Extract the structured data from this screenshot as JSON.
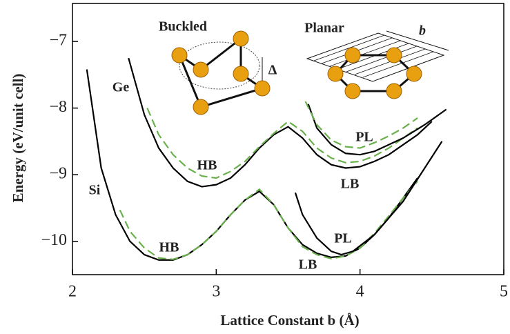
{
  "chart_data": {
    "type": "line",
    "xlabel": "Lattice Constant b (Å)",
    "ylabel": "Energy (eV/unit cell)",
    "xlim": [
      2,
      5
    ],
    "ylim": [
      -10.5,
      -6.43
    ],
    "xticks": [
      2,
      3,
      4,
      5
    ],
    "yticks": [
      {
        "value": -7,
        "label": "−7"
      },
      {
        "value": -8,
        "label": "−8"
      },
      {
        "value": -9,
        "label": "−9"
      },
      {
        "value": -10,
        "label": "−10"
      }
    ],
    "series": [
      {
        "color": "#000000",
        "dash": false,
        "x": [
          2.1,
          2.2,
          2.3,
          2.4,
          2.5,
          2.6,
          2.7,
          2.8,
          2.9,
          3.0,
          3.1,
          3.2,
          3.3,
          3.4,
          3.5,
          3.6,
          3.7,
          3.8,
          3.9,
          4.0,
          4.1,
          4.2,
          4.3,
          4.4
        ],
        "values": [
          -7.42,
          -8.9,
          -9.6,
          -10.0,
          -10.2,
          -10.28,
          -10.28,
          -10.2,
          -10.05,
          -9.85,
          -9.6,
          -9.38,
          -9.25,
          -9.45,
          -9.8,
          -10.05,
          -10.18,
          -10.24,
          -10.22,
          -10.1,
          -9.9,
          -9.65,
          -9.35,
          -9.05
        ]
      },
      {
        "color": "#6ab04c",
        "dash": true,
        "x": [
          2.33,
          2.4,
          2.5,
          2.6,
          2.7,
          2.8,
          2.9,
          3.0,
          3.1,
          3.2,
          3.3,
          3.4,
          3.5,
          3.6,
          3.7,
          3.8,
          3.9,
          4.0,
          4.1,
          4.2,
          4.3,
          4.4
        ],
        "values": [
          -9.53,
          -9.85,
          -10.1,
          -10.25,
          -10.27,
          -10.2,
          -10.05,
          -9.85,
          -9.6,
          -9.38,
          -9.22,
          -9.45,
          -9.8,
          -10.08,
          -10.2,
          -10.26,
          -10.22,
          -10.1,
          -9.88,
          -9.62,
          -9.35,
          -9.1
        ]
      },
      {
        "color": "#000000",
        "dash": false,
        "x": [
          3.55,
          3.6,
          3.7,
          3.8,
          3.87,
          3.95,
          4.1,
          4.3,
          4.45,
          4.57
        ],
        "values": [
          -9.27,
          -9.6,
          -9.95,
          -10.15,
          -10.2,
          -10.15,
          -9.9,
          -9.4,
          -8.9,
          -8.5
        ]
      },
      {
        "color": "#000000",
        "dash": false,
        "x": [
          2.39,
          2.5,
          2.6,
          2.7,
          2.8,
          2.9,
          3.0,
          3.1,
          3.2,
          3.3,
          3.4,
          3.5,
          3.6,
          3.7,
          3.8,
          3.9,
          4.0,
          4.1,
          4.2,
          4.3,
          4.4,
          4.5
        ],
        "values": [
          -7.25,
          -8.1,
          -8.6,
          -8.9,
          -9.1,
          -9.18,
          -9.15,
          -9.05,
          -8.85,
          -8.6,
          -8.4,
          -8.28,
          -8.45,
          -8.7,
          -8.85,
          -8.9,
          -8.88,
          -8.8,
          -8.7,
          -8.55,
          -8.4,
          -8.2
        ]
      },
      {
        "color": "#6ab04c",
        "dash": true,
        "x": [
          2.52,
          2.6,
          2.7,
          2.8,
          2.9,
          3.0,
          3.1,
          3.2,
          3.3,
          3.4,
          3.5,
          3.6,
          3.7,
          3.8,
          3.9,
          4.0,
          4.1,
          4.2,
          4.3,
          4.4
        ],
        "values": [
          -8.0,
          -8.4,
          -8.7,
          -8.9,
          -9.02,
          -9.05,
          -8.95,
          -8.8,
          -8.58,
          -8.38,
          -8.2,
          -8.35,
          -8.6,
          -8.75,
          -8.82,
          -8.8,
          -8.72,
          -8.6,
          -8.45,
          -8.3
        ]
      },
      {
        "color": "#000000",
        "dash": false,
        "x": [
          3.64,
          3.7,
          3.8,
          3.9,
          4.0,
          4.1,
          4.3,
          4.45,
          4.6
        ],
        "values": [
          -7.94,
          -8.3,
          -8.55,
          -8.68,
          -8.7,
          -8.65,
          -8.45,
          -8.25,
          -8.02
        ]
      },
      {
        "color": "#6ab04c",
        "dash": true,
        "x": [
          3.62,
          3.7,
          3.8,
          3.9,
          4.0,
          4.1,
          4.2,
          4.3,
          4.4
        ],
        "values": [
          -7.9,
          -8.25,
          -8.48,
          -8.58,
          -8.6,
          -8.52,
          -8.42,
          -8.3,
          -8.15
        ]
      }
    ],
    "annotations": [
      "Ge",
      "Si",
      "HB",
      "HB",
      "LB",
      "PL",
      "PL",
      "LB",
      "Buckled",
      "Planar",
      "b",
      "Δ"
    ]
  }
}
